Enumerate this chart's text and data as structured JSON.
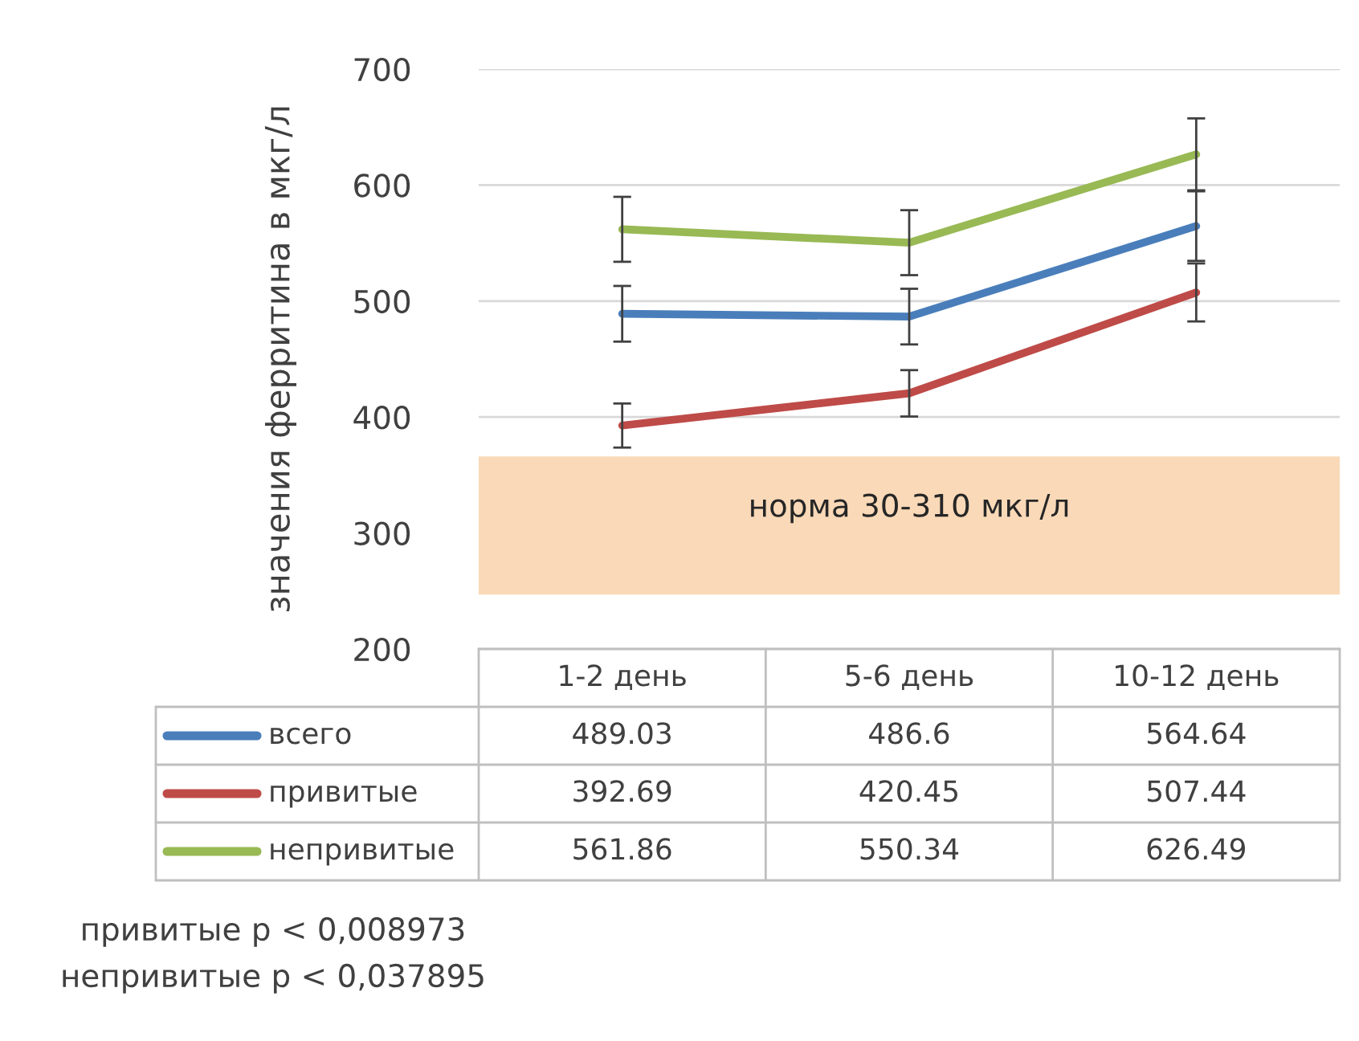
{
  "chart_data": {
    "type": "line",
    "ylabel": "значения ферритина в мкг/л",
    "categories": [
      "1-2 день",
      "5-6 день",
      "10-12 день"
    ],
    "series": [
      {
        "name": "всего",
        "color": "#4a7ebb",
        "values": [
          489.03,
          486.6,
          564.64
        ],
        "errors": [
          24,
          24,
          30
        ]
      },
      {
        "name": "привитые",
        "color": "#be4b48",
        "values": [
          392.69,
          420.45,
          507.44
        ],
        "errors": [
          19,
          20,
          25
        ]
      },
      {
        "name": "непривитые",
        "color": "#98b954",
        "values": [
          561.86,
          550.34,
          626.49
        ],
        "errors": [
          28,
          28,
          31
        ]
      }
    ],
    "ylim": [
      200,
      700
    ],
    "yticks": [
      200,
      300,
      400,
      500,
      600,
      700
    ],
    "grid": "y",
    "legend": "bottom",
    "data_labels": true,
    "marker": "none",
    "line_style": "solid",
    "bands": [
      {
        "axis": "y",
        "from": 247,
        "to": 366,
        "label": "норма 30-310 мкг/л",
        "color": "#fad9b8"
      }
    ],
    "annotations": [
      "привитые p < 0,008973",
      "непривитые p < 0,037895"
    ]
  }
}
